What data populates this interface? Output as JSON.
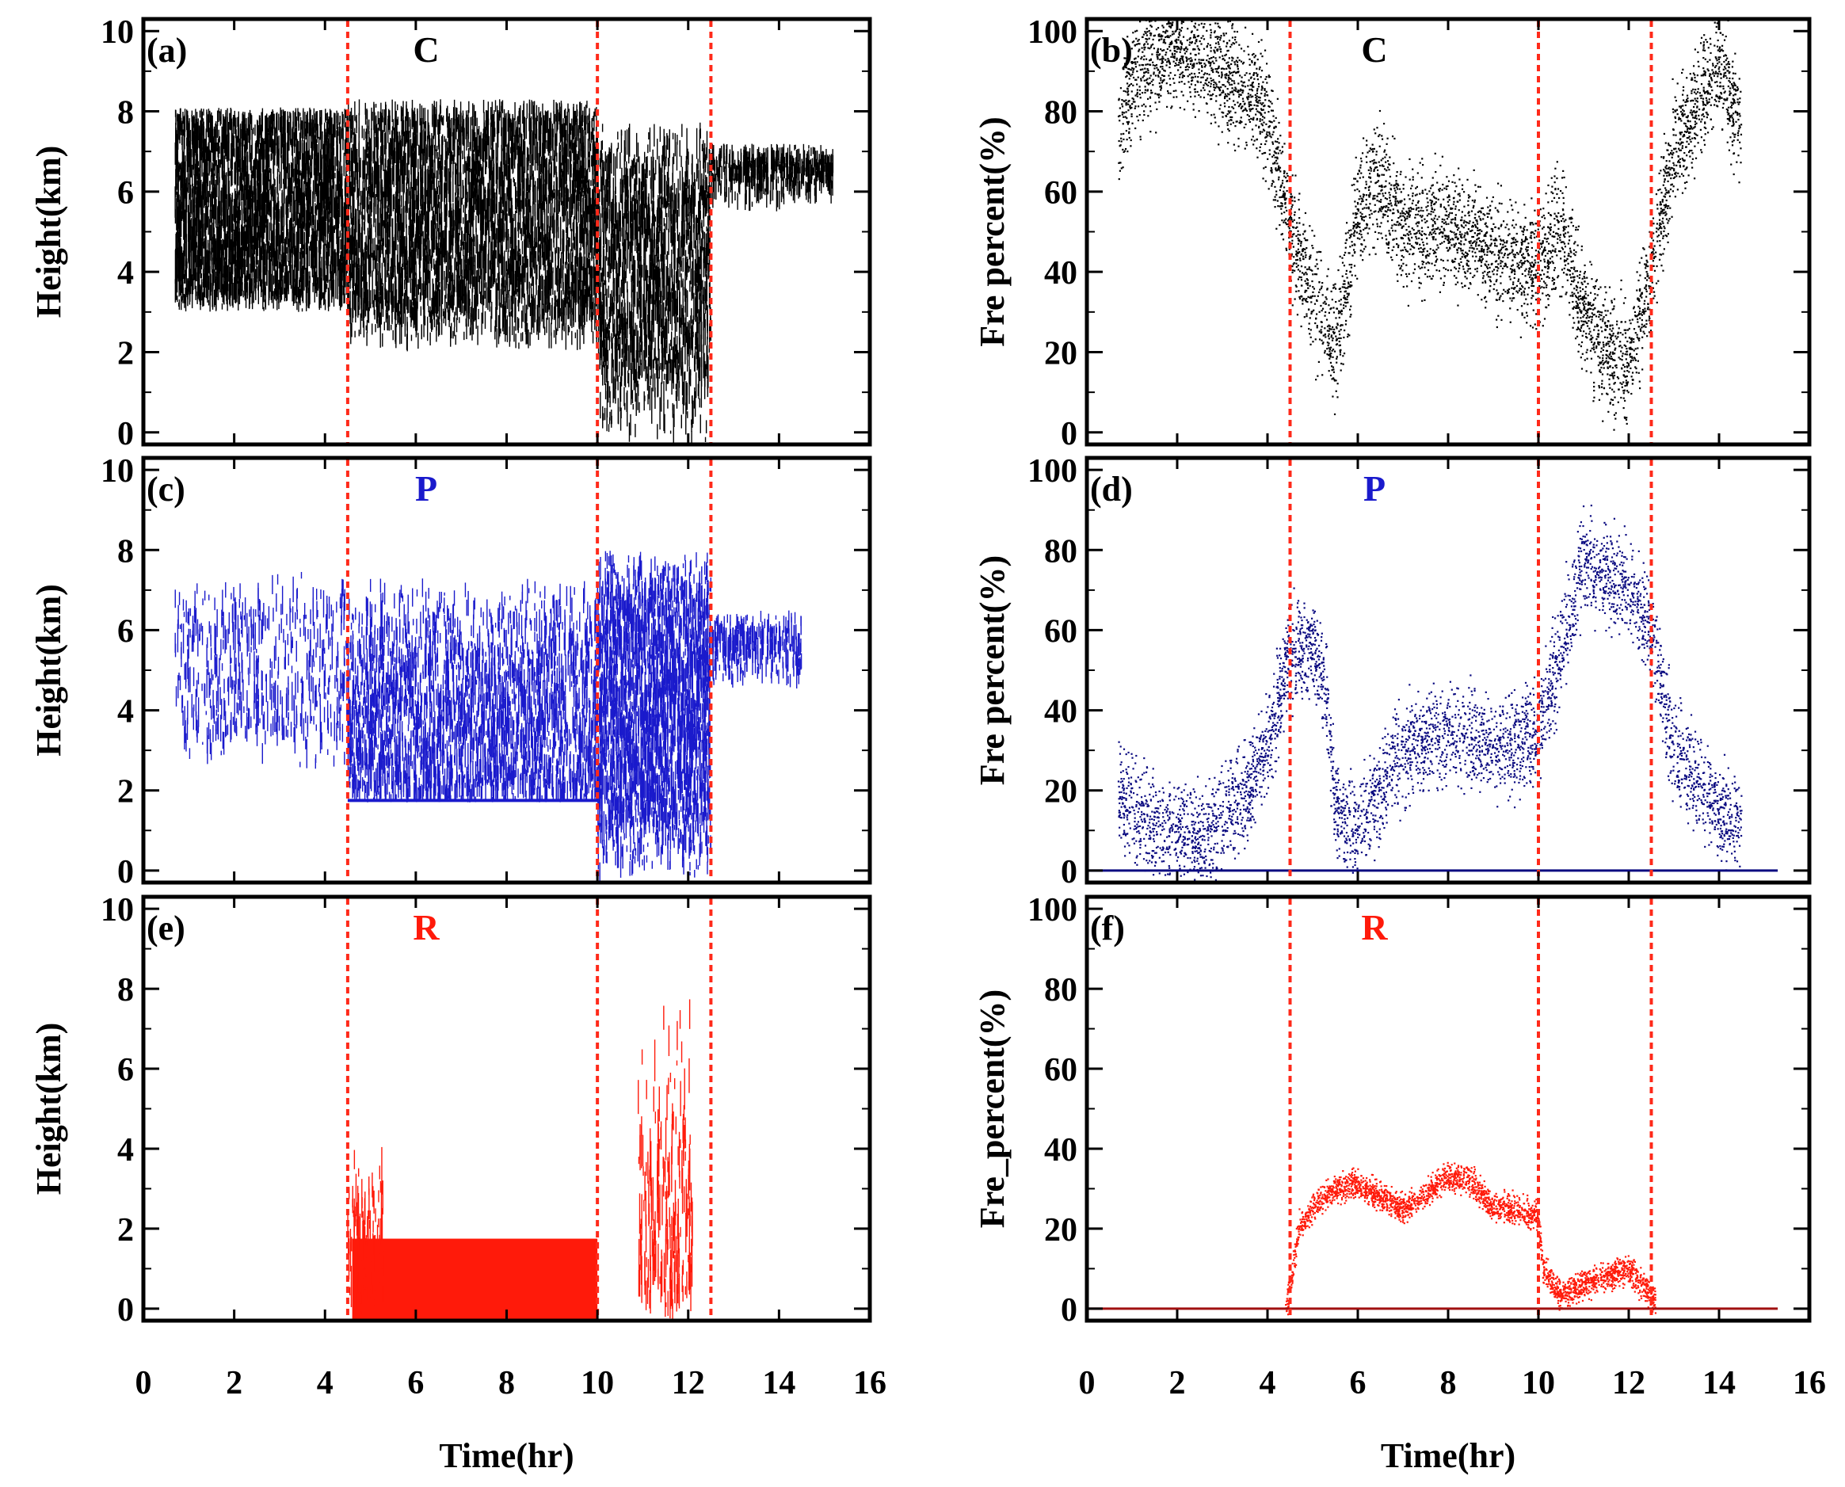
{
  "figure": {
    "xlabel": "Time(hr)",
    "marker_lines_x": [
      4.5,
      10,
      12.5
    ],
    "marker_line_color": "#ff2a1a",
    "colors": {
      "C": "#000000",
      "P": "#1a1acc",
      "R": "#ff1a0a"
    }
  },
  "chart_data": [
    {
      "id": "a",
      "panel_label": "(a)",
      "category": "C",
      "category_color": "#000000",
      "type": "scatter",
      "title": "",
      "xlabel": "",
      "ylabel": "Height(km)",
      "xlim": [
        0,
        16
      ],
      "ylim": [
        -0.3,
        10.3
      ],
      "yticks": [
        0,
        2,
        4,
        6,
        8,
        10
      ],
      "xticks": [
        0,
        2,
        4,
        6,
        8,
        10,
        12,
        14,
        16
      ],
      "series": [
        {
          "name": "C height",
          "kind": "streak",
          "color": "#000000",
          "seed": 11,
          "streak_len": 0.6,
          "segments": [
            {
              "x": [
                0.7,
                4.5
              ],
              "ylo": [
                3.0,
                3.5
              ],
              "yhi": [
                7.8,
                8.1
              ],
              "n": 2600
            },
            {
              "x": [
                4.5,
                10.0
              ],
              "ylo": [
                2.0,
                3.2
              ],
              "yhi": [
                7.8,
                8.3
              ],
              "n": 3400
            },
            {
              "x": [
                10.0,
                12.5
              ],
              "ylo": [
                -0.3,
                2.0
              ],
              "yhi": [
                6.0,
                7.8
              ],
              "n": 1500
            },
            {
              "x": [
                12.5,
                15.2
              ],
              "ylo": [
                5.5,
                6.8
              ],
              "yhi": [
                6.6,
                7.2
              ],
              "n": 500
            }
          ]
        }
      ]
    },
    {
      "id": "b",
      "panel_label": "(b)",
      "category": "C",
      "category_color": "#000000",
      "type": "scatter",
      "title": "",
      "xlabel": "",
      "ylabel": "Fre percent(%)",
      "xlim": [
        0,
        16
      ],
      "ylim": [
        -3,
        103
      ],
      "yticks": [
        0,
        20,
        40,
        60,
        80,
        100
      ],
      "xticks": [
        0,
        2,
        4,
        6,
        8,
        10,
        12,
        14,
        16
      ],
      "series": [
        {
          "name": "C frequency",
          "kind": "trend",
          "color": "#000000",
          "seed": 21,
          "n": 5000,
          "xrange": [
            0.7,
            14.5
          ],
          "x": [
            0.7,
            1.0,
            2.0,
            3.0,
            4.0,
            4.5,
            5.0,
            5.5,
            6.0,
            6.5,
            7.0,
            8.0,
            9.0,
            10.0,
            10.5,
            11.0,
            11.5,
            12.0,
            12.5,
            13.0,
            14.0,
            14.5
          ],
          "y": [
            75,
            88,
            97,
            90,
            80,
            50,
            35,
            20,
            55,
            62,
            50,
            52,
            45,
            40,
            52,
            30,
            20,
            18,
            40,
            70,
            92,
            75
          ],
          "spread": 14
        }
      ]
    },
    {
      "id": "c",
      "panel_label": "(c)",
      "category": "P",
      "category_color": "#1a1acc",
      "type": "scatter",
      "title": "",
      "xlabel": "",
      "ylabel": "Height(km)",
      "xlim": [
        0,
        16
      ],
      "ylim": [
        -0.3,
        10.3
      ],
      "yticks": [
        0,
        2,
        4,
        6,
        8,
        10
      ],
      "xticks": [
        0,
        2,
        4,
        6,
        8,
        10,
        12,
        14,
        16
      ],
      "series": [
        {
          "name": "P height",
          "kind": "streak",
          "color": "#1a1acc",
          "seed": 31,
          "streak_len": 0.5,
          "segments": [
            {
              "x": [
                0.7,
                4.5
              ],
              "ylo": [
                2.5,
                3.5
              ],
              "yhi": [
                6.5,
                7.5
              ],
              "n": 500
            },
            {
              "x": [
                4.5,
                10.0
              ],
              "ylo": [
                1.7,
                1.8
              ],
              "yhi": [
                5.0,
                7.4
              ],
              "n": 2200
            },
            {
              "x": [
                10.0,
                12.5
              ],
              "ylo": [
                -0.3,
                1.8
              ],
              "yhi": [
                6.5,
                8.0
              ],
              "n": 2200
            },
            {
              "x": [
                12.5,
                14.5
              ],
              "ylo": [
                4.5,
                5.5
              ],
              "yhi": [
                6.0,
                6.5
              ],
              "n": 300
            }
          ],
          "band": {
            "x": [
              4.5,
              10.0
            ],
            "y": 1.75
          }
        }
      ]
    },
    {
      "id": "d",
      "panel_label": "(d)",
      "category": "P",
      "category_color": "#1a1acc",
      "type": "scatter",
      "title": "",
      "xlabel": "",
      "ylabel": "Fre percent(%)",
      "xlim": [
        0,
        16
      ],
      "ylim": [
        -3,
        103
      ],
      "yticks": [
        0,
        20,
        40,
        60,
        80,
        100
      ],
      "xticks": [
        0,
        2,
        4,
        6,
        8,
        10,
        12,
        14,
        16
      ],
      "series": [
        {
          "name": "P frequency",
          "kind": "trend",
          "color": "#0a0a80",
          "seed": 41,
          "n": 4200,
          "xrange": [
            0.7,
            14.5
          ],
          "x": [
            0.7,
            1.5,
            2.5,
            3.5,
            4.0,
            4.5,
            5.0,
            5.3,
            5.5,
            6.0,
            7.0,
            8.0,
            9.0,
            10.0,
            10.5,
            11.0,
            12.0,
            12.5,
            13.0,
            14.0,
            14.5
          ],
          "y": [
            20,
            10,
            8,
            18,
            30,
            55,
            55,
            45,
            15,
            10,
            30,
            35,
            30,
            35,
            55,
            78,
            70,
            60,
            30,
            15,
            10
          ],
          "spread": 12
        },
        {
          "name": "P baseline",
          "kind": "line",
          "color": "#0a0a80",
          "x": [
            0,
            0.7,
            14.5,
            15.3
          ],
          "y": [
            0,
            0,
            0,
            0
          ]
        }
      ]
    },
    {
      "id": "e",
      "panel_label": "(e)",
      "category": "R",
      "category_color": "#ff1a0a",
      "type": "scatter",
      "title": "",
      "xlabel": "Time(hr)",
      "ylabel": "Height(km)",
      "xlim": [
        0,
        16
      ],
      "ylim": [
        -0.3,
        10.3
      ],
      "yticks": [
        0,
        2,
        4,
        6,
        8,
        10
      ],
      "xticks": [
        0,
        2,
        4,
        6,
        8,
        10,
        12,
        14,
        16
      ],
      "series": [
        {
          "name": "R height",
          "kind": "streak",
          "color": "#ff1a0a",
          "seed": 51,
          "streak_len": 0.8,
          "block": {
            "x": [
              4.6,
              10.0
            ],
            "y": [
              -0.3,
              1.75
            ]
          },
          "segments": [
            {
              "x": [
                4.5,
                5.3
              ],
              "ylo": [
                -0.3,
                0.5
              ],
              "yhi": [
                2.5,
                4.3
              ],
              "n": 120
            },
            {
              "x": [
                10.9,
                12.1
              ],
              "ylo": [
                -0.3,
                0.5
              ],
              "yhi": [
                3.0,
                7.8
              ],
              "n": 220
            }
          ]
        }
      ]
    },
    {
      "id": "f",
      "panel_label": "(f)",
      "category": "R",
      "category_color": "#ff1a0a",
      "type": "scatter",
      "title": "",
      "xlabel": "Time(hr)",
      "ylabel": "Fre_percent(%)",
      "xlim": [
        0,
        16
      ],
      "ylim": [
        -3,
        103
      ],
      "yticks": [
        0,
        20,
        40,
        60,
        80,
        100
      ],
      "xticks": [
        0,
        2,
        4,
        6,
        8,
        10,
        12,
        14,
        16
      ],
      "series": [
        {
          "name": "R frequency",
          "kind": "trend",
          "color": "#ff1a0a",
          "seed": 61,
          "n": 2600,
          "xrange": [
            4.4,
            12.6
          ],
          "x": [
            4.4,
            4.5,
            4.7,
            5.0,
            5.5,
            6.0,
            6.5,
            7.0,
            7.5,
            8.0,
            8.5,
            9.0,
            9.5,
            10.0,
            10.1,
            10.5,
            11.0,
            11.5,
            12.0,
            12.5,
            12.6
          ],
          "y": [
            0,
            5,
            20,
            25,
            30,
            31,
            28,
            25,
            28,
            33,
            32,
            25,
            25,
            23,
            10,
            3,
            6,
            8,
            10,
            3,
            1
          ],
          "spread": 3.5
        },
        {
          "name": "R baseline",
          "kind": "line",
          "color": "#a01010",
          "x": [
            0,
            4.4,
            12.6,
            15.3
          ],
          "y": [
            0,
            0,
            0,
            0
          ]
        }
      ]
    }
  ]
}
